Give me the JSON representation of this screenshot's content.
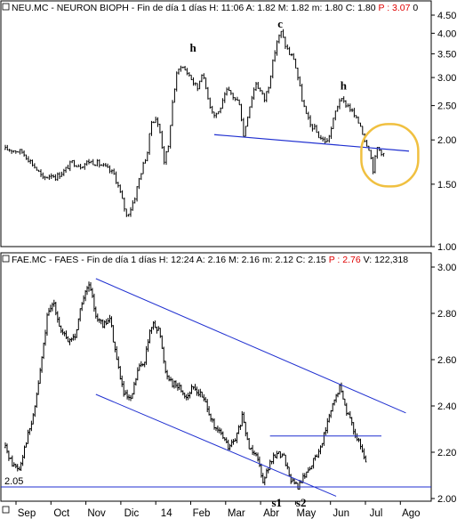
{
  "chart_data": [
    {
      "type": "line",
      "style": "ohlc-bars",
      "header": {
        "symbol": "NEU.MC - NEURON BIOPH",
        "period": "Fin de día 1 días",
        "h": "H: 11:06",
        "a": "A: 1.82",
        "m": "M: 1.82",
        "mm": "m: 1.80",
        "c": "C: 1.80",
        "p": "P : 3.07",
        "last_header_value": "0"
      },
      "scale": "log",
      "ylim": [
        1.0,
        4.5
      ],
      "y_ticks": [
        "4.50",
        "4.00",
        "3.50",
        "3.00",
        "2.50",
        "2.00",
        "1.50",
        "1.00"
      ],
      "series": [
        {
          "points": [
            [
              0,
              1.88
            ],
            [
              1,
              1.88
            ],
            [
              4,
              1.85
            ],
            [
              6,
              1.74
            ],
            [
              8,
              1.62
            ],
            [
              9,
              1.55
            ],
            [
              11,
              1.6
            ],
            [
              12,
              1.57
            ],
            [
              14,
              1.63
            ],
            [
              16,
              1.73
            ],
            [
              18,
              1.69
            ],
            [
              20,
              1.74
            ],
            [
              22,
              1.72
            ],
            [
              24,
              1.67
            ],
            [
              26,
              1.6
            ],
            [
              27,
              1.48
            ],
            [
              28,
              1.35
            ],
            [
              29,
              1.22
            ],
            [
              30,
              1.28
            ],
            [
              31,
              1.38
            ],
            [
              32,
              1.55
            ],
            [
              33,
              1.7
            ],
            [
              34,
              1.85
            ],
            [
              35,
              2.25
            ],
            [
              36,
              2.3
            ],
            [
              37,
              2.1
            ],
            [
              38,
              1.75
            ],
            [
              39,
              1.9
            ],
            [
              40,
              2.55
            ],
            [
              41,
              3.05
            ],
            [
              42,
              3.25
            ],
            [
              43,
              3.15
            ],
            [
              44,
              3.05
            ],
            [
              45,
              2.9
            ],
            [
              46,
              2.8
            ],
            [
              47,
              3.1
            ],
            [
              48,
              2.8
            ],
            [
              49,
              2.5
            ],
            [
              50,
              2.35
            ],
            [
              51,
              2.4
            ],
            [
              52,
              2.55
            ],
            [
              53,
              2.75
            ],
            [
              54,
              2.7
            ],
            [
              55,
              2.6
            ],
            [
              56,
              2.55
            ],
            [
              57,
              2.05
            ],
            [
              58,
              2.35
            ],
            [
              59,
              2.65
            ],
            [
              60,
              2.9
            ],
            [
              61,
              2.75
            ],
            [
              62,
              2.6
            ],
            [
              63,
              2.85
            ],
            [
              64,
              3.3
            ],
            [
              65,
              3.8
            ],
            [
              66,
              4.02
            ],
            [
              67,
              3.7
            ],
            [
              68,
              3.5
            ],
            [
              69,
              3.4
            ],
            [
              70,
              3.0
            ],
            [
              71,
              2.6
            ],
            [
              72,
              2.35
            ],
            [
              73,
              2.2
            ],
            [
              74,
              2.15
            ],
            [
              75,
              2.05
            ],
            [
              76,
              2.0
            ],
            [
              77,
              1.98
            ],
            [
              78,
              2.15
            ],
            [
              79,
              2.4
            ],
            [
              80,
              2.6
            ],
            [
              81,
              2.55
            ],
            [
              82,
              2.5
            ],
            [
              83,
              2.4
            ],
            [
              84,
              2.28
            ],
            [
              85,
              2.2
            ],
            [
              86,
              2.0
            ],
            [
              87,
              1.9
            ],
            [
              88,
              1.65
            ],
            [
              89,
              1.9
            ],
            [
              90,
              1.85
            ],
            [
              91,
              1.8
            ]
          ]
        }
      ],
      "annotations": [
        {
          "label": "h",
          "x": 45,
          "y": 3.55
        },
        {
          "label": "c",
          "x": 66,
          "y": 4.15
        },
        {
          "label": "h",
          "x": 81,
          "y": 2.78
        }
      ],
      "neckline": [
        [
          50,
          2.07
        ],
        [
          100,
          1.86
        ]
      ],
      "highlight_circle": {
        "x": 92,
        "y": 1.8,
        "color": "#f0c040"
      }
    },
    {
      "type": "line",
      "style": "ohlc-bars",
      "header": {
        "symbol": "FAE.MC - FAES",
        "period": "Fin de día 1 días",
        "h": "H: 12:24",
        "a": "A: 2.16",
        "m": "M: 2.16",
        "mm": "m: 2.12",
        "c": "C: 2.15",
        "p": "P : 2.76",
        "v": "V: 122,318"
      },
      "ylim": [
        2.0,
        3.0
      ],
      "y_ticks": [
        "3.00",
        "2.80",
        "2.60",
        "2.40",
        "2.20",
        "2.00"
      ],
      "support_label": "2.05",
      "support_level": 2.05,
      "x_labels": [
        "Sep",
        "Oct",
        "Nov",
        "Dic",
        "14",
        "Feb",
        "Mar",
        "Abr",
        "May",
        "Jun",
        "Jul",
        "Ago"
      ],
      "series": [
        {
          "points": [
            [
              0,
              2.22
            ],
            [
              2,
              2.15
            ],
            [
              4,
              2.13
            ],
            [
              6,
              2.25
            ],
            [
              8,
              2.35
            ],
            [
              10,
              2.55
            ],
            [
              12,
              2.78
            ],
            [
              14,
              2.85
            ],
            [
              16,
              2.72
            ],
            [
              18,
              2.68
            ],
            [
              20,
              2.7
            ],
            [
              22,
              2.85
            ],
            [
              24,
              2.92
            ],
            [
              26,
              2.8
            ],
            [
              28,
              2.74
            ],
            [
              30,
              2.78
            ],
            [
              32,
              2.6
            ],
            [
              34,
              2.45
            ],
            [
              36,
              2.42
            ],
            [
              38,
              2.55
            ],
            [
              40,
              2.6
            ],
            [
              42,
              2.75
            ],
            [
              44,
              2.74
            ],
            [
              46,
              2.55
            ],
            [
              48,
              2.5
            ],
            [
              50,
              2.48
            ],
            [
              52,
              2.44
            ],
            [
              54,
              2.48
            ],
            [
              56,
              2.45
            ],
            [
              58,
              2.4
            ],
            [
              60,
              2.3
            ],
            [
              62,
              2.28
            ],
            [
              64,
              2.22
            ],
            [
              66,
              2.25
            ],
            [
              68,
              2.35
            ],
            [
              70,
              2.22
            ],
            [
              72,
              2.2
            ],
            [
              74,
              2.08
            ],
            [
              76,
              2.15
            ],
            [
              78,
              2.2
            ],
            [
              80,
              2.18
            ],
            [
              82,
              2.08
            ],
            [
              84,
              2.05
            ],
            [
              86,
              2.1
            ],
            [
              88,
              2.15
            ],
            [
              90,
              2.2
            ],
            [
              92,
              2.3
            ],
            [
              94,
              2.4
            ],
            [
              96,
              2.48
            ],
            [
              98,
              2.38
            ],
            [
              100,
              2.3
            ],
            [
              102,
              2.22
            ],
            [
              104,
              2.13
            ]
          ]
        }
      ],
      "annotations": [
        {
          "label": "s1",
          "x": 78,
          "y": 2.02
        },
        {
          "label": "s2",
          "x": 85,
          "y": 2.02
        }
      ],
      "channel_upper": [
        [
          26,
          2.95
        ],
        [
          115,
          2.37
        ]
      ],
      "channel_lower": [
        [
          26,
          2.45
        ],
        [
          95,
          2.01
        ]
      ],
      "horizontal_level": 2.27
    }
  ]
}
